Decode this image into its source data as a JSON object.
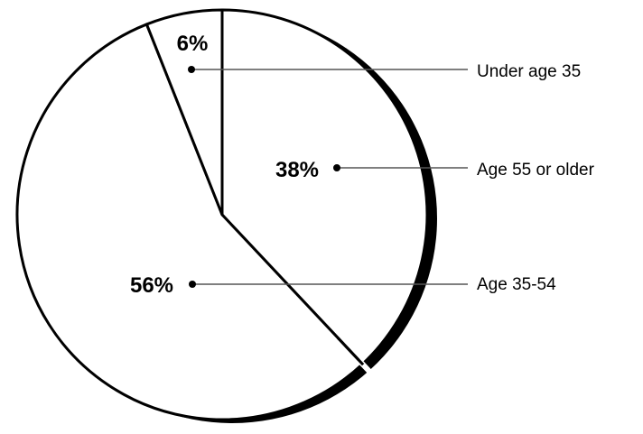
{
  "chart_data": {
    "type": "pie",
    "slices": [
      {
        "label": "Under age 35",
        "value": 6,
        "value_label": "6%"
      },
      {
        "label": "Age 55 or older",
        "value": 38,
        "value_label": "38%"
      },
      {
        "label": "Age 35-54",
        "value": 56,
        "value_label": "56%"
      }
    ],
    "title": "",
    "legend": "right, leader lines",
    "colors": {
      "fill": "#ffffff",
      "stroke": "#000000",
      "leader": "#555555"
    }
  }
}
